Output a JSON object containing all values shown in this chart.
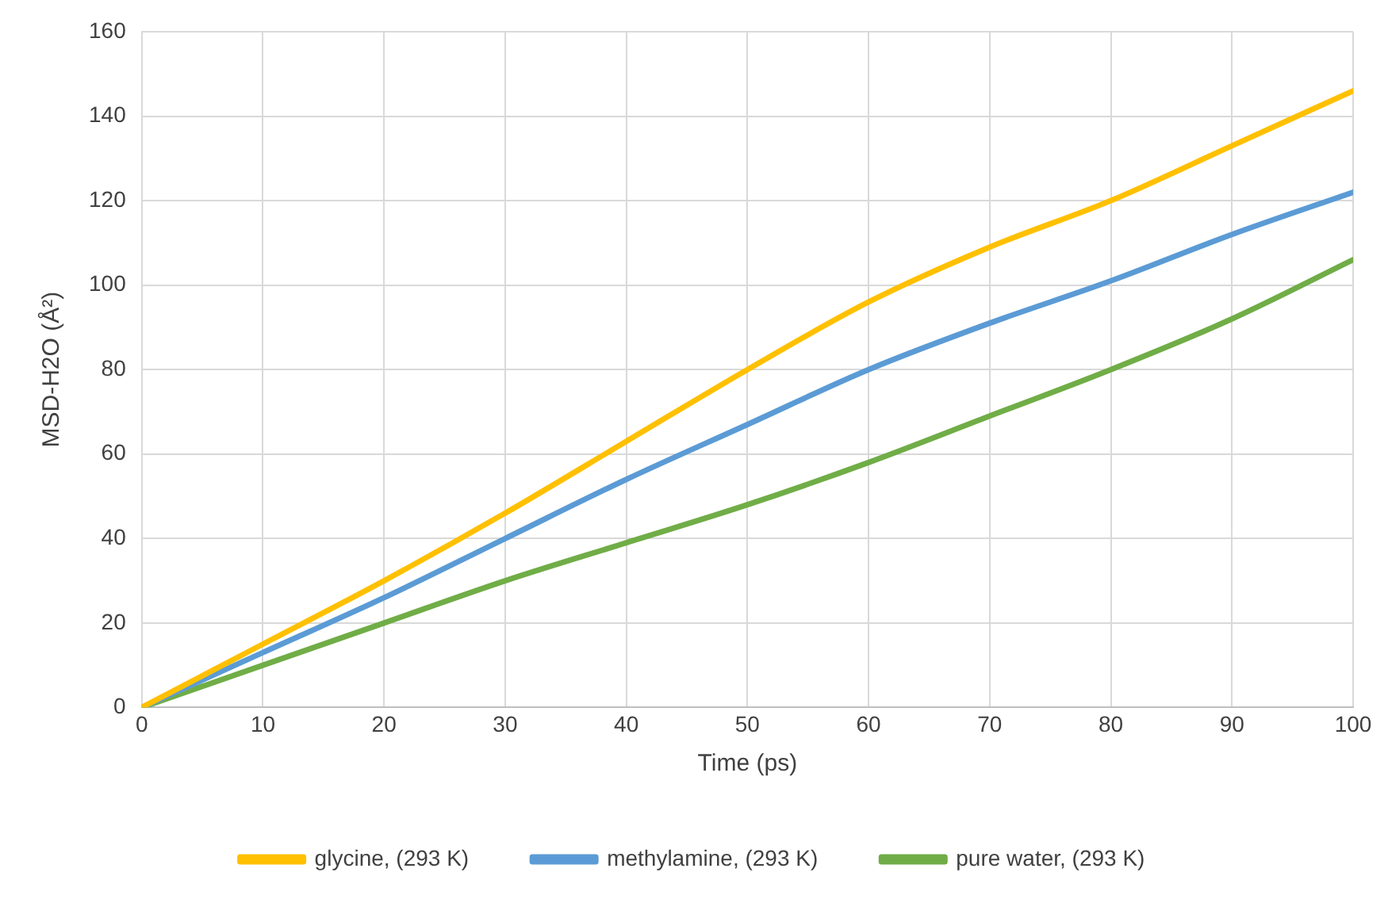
{
  "chart_data": {
    "type": "line",
    "xlabel": "Time (ps)",
    "ylabel": "MSD-H2O (Å²)",
    "x": [
      0,
      10,
      20,
      30,
      40,
      50,
      60,
      70,
      80,
      90,
      100
    ],
    "series": [
      {
        "name": "glycine, (293 K)",
        "color": "#ffc000",
        "values": [
          0,
          15,
          30,
          46,
          63,
          80,
          96,
          109,
          120,
          133,
          146
        ]
      },
      {
        "name": "methylamine, (293 K)",
        "color": "#5b9bd5",
        "values": [
          0,
          13,
          26,
          40,
          54,
          67,
          80,
          91,
          101,
          112,
          122
        ]
      },
      {
        "name": "pure water, (293 K)",
        "color": "#70ad47",
        "values": [
          0,
          10,
          20,
          30,
          39,
          48,
          58,
          69,
          80,
          92,
          106
        ]
      }
    ],
    "xlim": [
      0,
      100
    ],
    "xticks": [
      0,
      10,
      20,
      30,
      40,
      50,
      60,
      70,
      80,
      90,
      100
    ],
    "ylim": [
      0,
      160
    ],
    "yticks": [
      0,
      20,
      40,
      60,
      80,
      100,
      120,
      140,
      160
    ],
    "grid": true,
    "legend": "bottom",
    "marker": "none",
    "line_style": "solid"
  }
}
